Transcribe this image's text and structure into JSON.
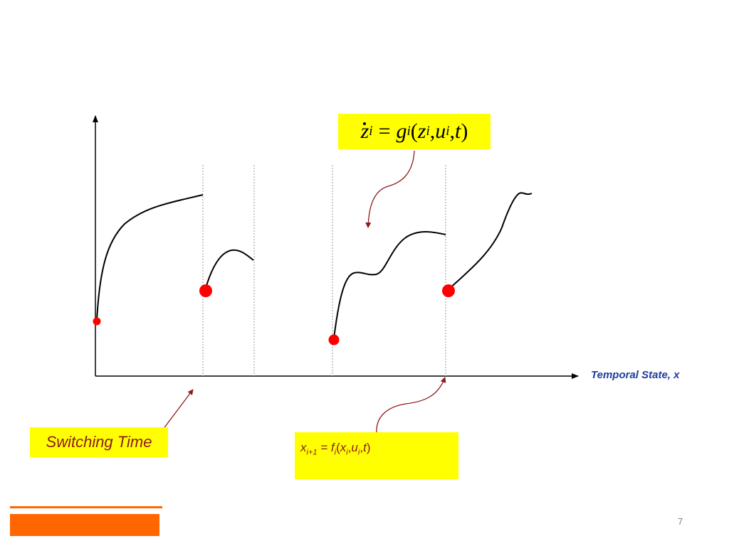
{
  "colors": {
    "background": "#ffffff",
    "highlight": "#ffff00",
    "axis": "#000000",
    "curve": "#000000",
    "marker": "#ff0000",
    "annotation_arrow": "#8b1a1a",
    "axis_label": "#1f3d9e",
    "footer_accent": "#ff6600",
    "page_number": "#7f7f7f"
  },
  "axis": {
    "x_label": "Temporal State, x"
  },
  "equation": {
    "lhs": "z",
    "lhs_sub": "i",
    "op": "=",
    "func": "g",
    "func_sub": "i",
    "open": "(",
    "arg1": "z",
    "arg1_sub": "i",
    "sep1": ",",
    "arg2": "u",
    "arg2_sub": "i",
    "sep2": ",",
    "arg3": "t",
    "close": ")"
  },
  "switching_label": "Switching Time",
  "transition": {
    "x": "x",
    "x_sub": "i+1",
    "op": " = ",
    "f": "f",
    "f_sub": "i",
    "open": "(",
    "a1": "x",
    "a1_sub": "i",
    "sep1": ",",
    "a2": "u",
    "a2_sub": "i",
    "sep2": ",",
    "a3": "t",
    "close": ")"
  },
  "page_number": "7"
}
